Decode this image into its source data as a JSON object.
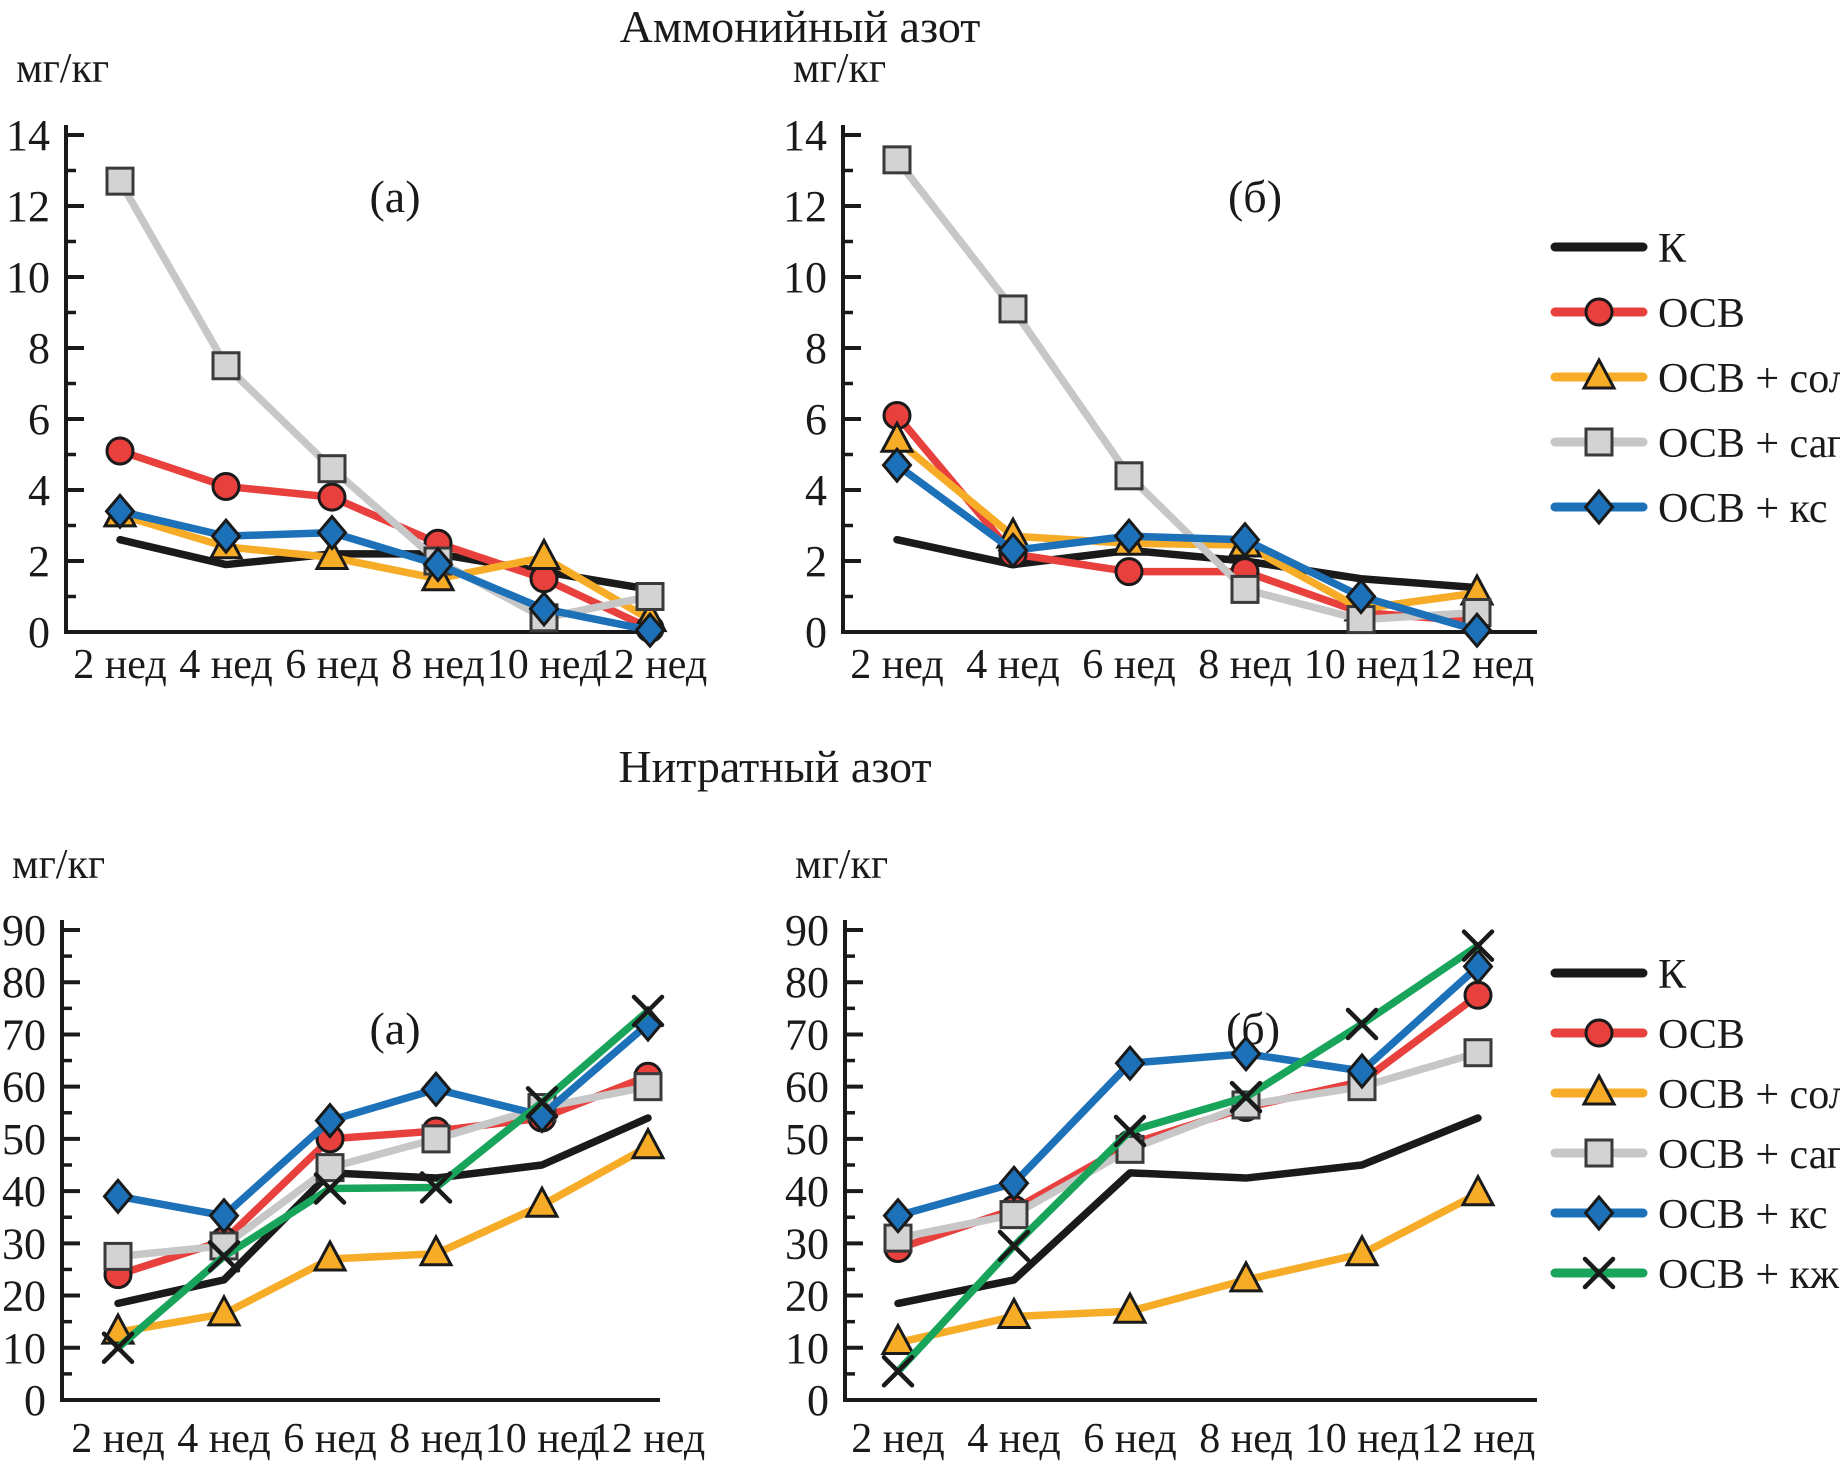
{
  "figure": {
    "sections": [
      {
        "title": "Аммонийный азот"
      },
      {
        "title": "Нитратный азот"
      }
    ],
    "unit_label": "мг/кг",
    "categories": [
      "2 нед",
      "4 нед",
      "6 нед",
      "8 нед",
      "10 нед",
      "12 нед"
    ]
  },
  "colors": {
    "black": "#1a1a1a",
    "red": "#e8403d",
    "yellow": "#f7ac28",
    "gray": "#c7c7c7",
    "gray_marker_fill": "#d3d3d3",
    "blue": "#1d71b8",
    "green": "#18a45b"
  },
  "chart_data": [
    {
      "id": "ammonium-a",
      "type": "line",
      "section_title": "Аммонийный азот",
      "panel_label": "(а)",
      "ylabel": "мг/кг",
      "xlabel": "",
      "ylim": [
        0,
        14
      ],
      "ytick_step": 2,
      "grid": false,
      "legend_position": "right-of-row",
      "categories": [
        "2 нед",
        "4 нед",
        "6 нед",
        "8 нед",
        "10 нед",
        "12 нед"
      ],
      "series": [
        {
          "id": "k",
          "name": "К",
          "color": "#1a1a1a",
          "marker": "none",
          "values": [
            2.6,
            1.9,
            2.2,
            2.2,
            1.7,
            1.2
          ]
        },
        {
          "id": "osv",
          "name": "ОСВ",
          "color": "#e8403d",
          "marker": "circle",
          "values": [
            5.1,
            4.1,
            3.8,
            2.5,
            1.5,
            0.1
          ]
        },
        {
          "id": "osv-sol",
          "name": "ОСВ + сол",
          "color": "#f7ac28",
          "marker": "triangle",
          "values": [
            3.3,
            2.4,
            2.1,
            1.5,
            2.1,
            0.35
          ]
        },
        {
          "id": "osv-sap",
          "name": "ОСВ + сап",
          "color": "#c7c7c7",
          "marker": "square",
          "values": [
            12.7,
            7.5,
            4.6,
            2.0,
            0.4,
            1.0
          ]
        },
        {
          "id": "osv-ks",
          "name": "ОСВ + кс",
          "color": "#1d71b8",
          "marker": "diamond",
          "values": [
            3.4,
            2.7,
            2.8,
            1.9,
            0.65,
            0.05
          ]
        }
      ]
    },
    {
      "id": "ammonium-b",
      "type": "line",
      "section_title": "Аммонийный азот",
      "panel_label": "(б)",
      "ylabel": "мг/кг",
      "xlabel": "",
      "ylim": [
        0,
        14
      ],
      "ytick_step": 2,
      "grid": false,
      "categories": [
        "2 нед",
        "4 нед",
        "6 нед",
        "8 нед",
        "10 нед",
        "12 нед"
      ],
      "series": [
        {
          "id": "k",
          "name": "К",
          "color": "#1a1a1a",
          "marker": "none",
          "values": [
            2.6,
            1.9,
            2.3,
            2.0,
            1.5,
            1.25
          ]
        },
        {
          "id": "osv",
          "name": "ОСВ",
          "color": "#e8403d",
          "marker": "circle",
          "values": [
            6.1,
            2.2,
            1.7,
            1.7,
            0.55,
            0.3
          ]
        },
        {
          "id": "osv-sol",
          "name": "ОСВ + сол",
          "color": "#f7ac28",
          "marker": "triangle",
          "values": [
            5.4,
            2.7,
            2.5,
            2.45,
            0.65,
            1.1
          ]
        },
        {
          "id": "osv-sap",
          "name": "ОСВ + сап",
          "color": "#c7c7c7",
          "marker": "square",
          "values": [
            13.3,
            9.1,
            4.4,
            1.2,
            0.35,
            0.55
          ]
        },
        {
          "id": "osv-ks",
          "name": "ОСВ + кс",
          "color": "#1d71b8",
          "marker": "diamond",
          "values": [
            4.7,
            2.3,
            2.7,
            2.6,
            1.0,
            0.05
          ]
        }
      ]
    },
    {
      "id": "nitrate-a",
      "type": "line",
      "section_title": "Нитратный азот",
      "panel_label": "(а)",
      "ylabel": "мг/кг",
      "xlabel": "",
      "ylim": [
        0,
        90
      ],
      "ytick_step": 10,
      "grid": false,
      "categories": [
        "2 нед",
        "4 нед",
        "6 нед",
        "8 нед",
        "10 нед",
        "12 нед"
      ],
      "series": [
        {
          "id": "k",
          "name": "К",
          "color": "#1a1a1a",
          "marker": "none",
          "values": [
            18.5,
            23,
            43.5,
            42.5,
            45,
            54
          ]
        },
        {
          "id": "osv",
          "name": "ОСВ",
          "color": "#e8403d",
          "marker": "circle",
          "values": [
            24,
            30.5,
            50,
            51.5,
            54,
            62
          ]
        },
        {
          "id": "osv-sol",
          "name": "ОСВ + сол",
          "color": "#f7ac28",
          "marker": "triangle",
          "values": [
            13,
            16.5,
            27,
            28,
            37.3,
            48.5
          ]
        },
        {
          "id": "osv-sap",
          "name": "ОСВ + сап",
          "color": "#c7c7c7",
          "marker": "square",
          "values": [
            27.5,
            29.5,
            44.5,
            50,
            56,
            60
          ]
        },
        {
          "id": "osv-ks",
          "name": "ОСВ + кс",
          "color": "#1d71b8",
          "marker": "diamond",
          "values": [
            39,
            35.3,
            53.5,
            59.5,
            54.5,
            72
          ]
        },
        {
          "id": "osv-kzh",
          "name": "ОСВ + кж",
          "color": "#18a45b",
          "marker": "x",
          "values": [
            10,
            27.5,
            40.5,
            40.7,
            57,
            74.5
          ]
        }
      ]
    },
    {
      "id": "nitrate-b",
      "type": "line",
      "section_title": "Нитратный азот",
      "panel_label": "(б)",
      "ylabel": "мг/кг",
      "xlabel": "",
      "ylim": [
        0,
        90
      ],
      "ytick_step": 10,
      "grid": false,
      "categories": [
        "2 нед",
        "4 нед",
        "6 нед",
        "8 нед",
        "10 нед",
        "12 нед"
      ],
      "series": [
        {
          "id": "k",
          "name": "К",
          "color": "#1a1a1a",
          "marker": "none",
          "values": [
            18.5,
            23,
            43.5,
            42.5,
            45,
            54
          ]
        },
        {
          "id": "osv",
          "name": "ОСВ",
          "color": "#e8403d",
          "marker": "circle",
          "values": [
            29,
            36.5,
            49,
            56,
            61,
            77.5
          ]
        },
        {
          "id": "osv-sol",
          "name": "ОСВ + сол",
          "color": "#f7ac28",
          "marker": "triangle",
          "values": [
            11,
            16,
            17,
            23,
            28,
            39.5
          ]
        },
        {
          "id": "osv-sap",
          "name": "ОСВ + сап",
          "color": "#c7c7c7",
          "marker": "square",
          "values": [
            31,
            35.5,
            48,
            56.5,
            60,
            66.5
          ]
        },
        {
          "id": "osv-ks",
          "name": "ОСВ + кс",
          "color": "#1d71b8",
          "marker": "diamond",
          "values": [
            35.3,
            41.5,
            64.5,
            66.3,
            63,
            83
          ]
        },
        {
          "id": "osv-kzh",
          "name": "ОСВ + кж",
          "color": "#18a45b",
          "marker": "x",
          "values": [
            5.5,
            29.5,
            51.5,
            58,
            72,
            87
          ]
        }
      ]
    }
  ],
  "legends": [
    {
      "items": [
        "К",
        "ОСВ",
        "ОСВ + сол",
        "ОСВ + сап",
        "ОСВ + кс"
      ]
    },
    {
      "items": [
        "К",
        "ОСВ",
        "ОСВ + сол",
        "ОСВ + сап",
        "ОСВ + кс",
        "ОСВ + кж"
      ]
    }
  ]
}
